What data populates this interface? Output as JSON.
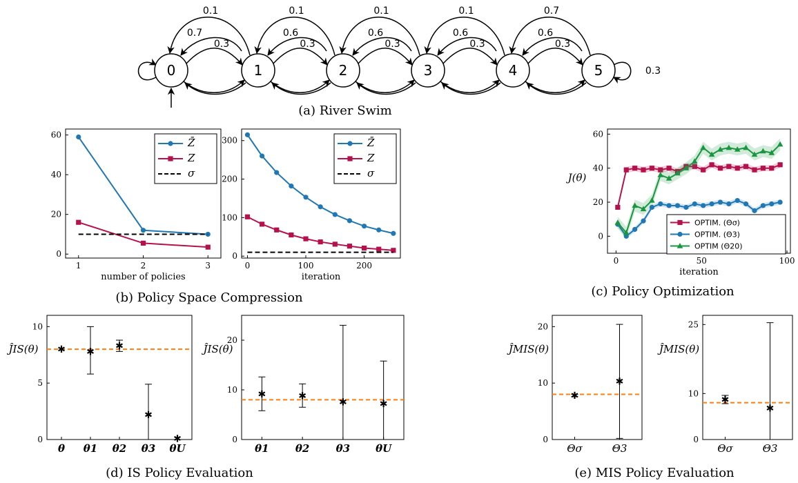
{
  "colors": {
    "blue": "#1f77b4",
    "red": "#b5124d",
    "green": "#1a9641",
    "orange": "#ff7f0e",
    "black": "#000000"
  },
  "river_swim": {
    "caption": "(a) River Swim",
    "states": [
      "0",
      "1",
      "2",
      "3",
      "4",
      "5"
    ],
    "probs": {
      "top": [
        "0.1",
        "0.1",
        "0.1",
        "0.1",
        "0.7"
      ],
      "stay_left": [
        "0.7",
        "0.6",
        "0.6",
        "0.6",
        "0.6"
      ],
      "forward": [
        "0.3",
        "0.3",
        "0.3",
        "0.3",
        "0.3"
      ],
      "self5": "0.3"
    }
  },
  "captions": {
    "b": "(b) Policy Space Compression",
    "c": "(c) Policy Optimization",
    "d": "(d) IS Policy Evaluation",
    "e": "(e) MIS Policy Evaluation"
  },
  "chart_data": [
    {
      "id": "b1",
      "type": "line",
      "xlabel": "number of policies",
      "ylabel": "",
      "xlim": [
        0.8,
        3.2
      ],
      "ylim": [
        -2,
        63
      ],
      "xticks": [
        1,
        2,
        3
      ],
      "yticks": [
        0,
        20,
        40,
        60
      ],
      "legend_position": "top-right",
      "series": [
        {
          "name": "Z̄",
          "color": "blue",
          "marker": "circle",
          "x": [
            1,
            2,
            3
          ],
          "y": [
            59,
            12,
            10
          ]
        },
        {
          "name": "Z",
          "color": "red",
          "marker": "square",
          "x": [
            1,
            2,
            3
          ],
          "y": [
            16,
            5.5,
            3.5
          ]
        },
        {
          "name": "σ",
          "color": "black",
          "dashed": true,
          "x": [
            1,
            3
          ],
          "y": [
            10,
            10
          ]
        }
      ]
    },
    {
      "id": "b2",
      "type": "line",
      "xlabel": "iteration",
      "ylabel": "",
      "xlim": [
        -10,
        262
      ],
      "ylim": [
        -5,
        330
      ],
      "xticks": [
        0,
        100,
        200
      ],
      "yticks": [
        0,
        100,
        200,
        300
      ],
      "legend_position": "top-right",
      "series": [
        {
          "name": "Z̄",
          "color": "blue",
          "marker": "circle",
          "x": [
            0,
            25,
            50,
            75,
            100,
            125,
            150,
            175,
            200,
            225,
            250
          ],
          "y": [
            315,
            260,
            217,
            182,
            153,
            128,
            108,
            92,
            78,
            68,
            59
          ]
        },
        {
          "name": "Z",
          "color": "red",
          "marker": "square",
          "x": [
            0,
            25,
            50,
            75,
            100,
            125,
            150,
            175,
            200,
            225,
            250
          ],
          "y": [
            102,
            83,
            68,
            55,
            45,
            37,
            31,
            26,
            21,
            18,
            15
          ]
        },
        {
          "name": "σ",
          "color": "black",
          "dashed": true,
          "x": [
            0,
            250
          ],
          "y": [
            10,
            10
          ]
        }
      ]
    },
    {
      "id": "c",
      "type": "line",
      "xlabel": "iteration",
      "ylabel": "J(θ)",
      "xlim": [
        -5,
        102
      ],
      "ylim": [
        -10,
        63
      ],
      "xticks": [
        0,
        50,
        100
      ],
      "yticks": [
        0,
        20,
        40,
        60
      ],
      "legend_position": "bottom-right",
      "series": [
        {
          "name": "OPTIM. (Θσ)",
          "color": "red",
          "marker": "square",
          "x": [
            1,
            6,
            11,
            16,
            21,
            26,
            31,
            36,
            41,
            46,
            51,
            56,
            61,
            66,
            71,
            76,
            81,
            86,
            91,
            96
          ],
          "y": [
            17,
            39,
            40,
            39,
            40,
            39,
            40,
            38,
            41,
            41,
            39,
            42,
            40,
            41,
            40,
            41,
            39,
            40,
            40,
            42
          ]
        },
        {
          "name": "OPTIM. (Θ3)",
          "color": "blue",
          "marker": "circle",
          "x": [
            1,
            6,
            11,
            16,
            21,
            26,
            31,
            36,
            41,
            46,
            51,
            56,
            61,
            66,
            71,
            76,
            81,
            86,
            91,
            96
          ],
          "y": [
            7,
            0,
            4,
            9,
            17,
            19,
            18,
            18,
            17,
            19,
            18,
            19,
            20,
            19,
            21,
            19,
            15,
            18,
            19,
            20
          ]
        },
        {
          "name": "OPTIM (Θ20)",
          "color": "green",
          "marker": "triangle",
          "x": [
            1,
            6,
            11,
            16,
            21,
            26,
            31,
            36,
            41,
            46,
            51,
            56,
            61,
            66,
            71,
            76,
            81,
            86,
            91,
            96
          ],
          "y": [
            8,
            2,
            18,
            16,
            21,
            36,
            34,
            37,
            40,
            44,
            52,
            48,
            51,
            52,
            51,
            52,
            48,
            50,
            49,
            54
          ]
        }
      ]
    },
    {
      "id": "d1",
      "type": "errorbar",
      "ylabel": "ĴIS(θ)",
      "categories": [
        "θ",
        "θ1",
        "θ2",
        "θ3",
        "θU"
      ],
      "ylim": [
        0,
        11
      ],
      "yticks": [
        0,
        5,
        10
      ],
      "reference": 8,
      "points": [
        {
          "y": 8.0,
          "lo": 8.0,
          "hi": 8.0
        },
        {
          "y": 7.8,
          "lo": 5.8,
          "hi": 10.0
        },
        {
          "y": 8.3,
          "lo": 7.8,
          "hi": 8.8
        },
        {
          "y": 2.2,
          "lo": 0.0,
          "hi": 4.9
        },
        {
          "y": 0.1,
          "lo": 0.1,
          "hi": 0.1
        }
      ]
    },
    {
      "id": "d2",
      "type": "errorbar",
      "ylabel": "ĴIS(θ)",
      "categories": [
        "θ1",
        "θ2",
        "θ3",
        "θU"
      ],
      "ylim": [
        0,
        25
      ],
      "yticks": [
        0,
        10,
        20
      ],
      "reference": 8,
      "points": [
        {
          "y": 9.2,
          "lo": 5.8,
          "hi": 12.6
        },
        {
          "y": 8.8,
          "lo": 6.5,
          "hi": 11.2
        },
        {
          "y": 7.6,
          "lo": 0.0,
          "hi": 23.0
        },
        {
          "y": 7.2,
          "lo": 0.0,
          "hi": 15.8
        }
      ]
    },
    {
      "id": "e1",
      "type": "errorbar",
      "ylabel": "ĴMIS(θ)",
      "categories": [
        "Θσ",
        "Θ3"
      ],
      "ylim": [
        0,
        22
      ],
      "yticks": [
        0,
        10,
        20
      ],
      "reference": 8,
      "points": [
        {
          "y": 7.8,
          "lo": 7.6,
          "hi": 8.0
        },
        {
          "y": 10.3,
          "lo": 0.2,
          "hi": 20.4
        }
      ]
    },
    {
      "id": "e2",
      "type": "errorbar",
      "ylabel": "ĴMIS(θ)",
      "categories": [
        "Θσ",
        "Θ3"
      ],
      "ylim": [
        0,
        27
      ],
      "yticks": [
        0,
        10,
        25
      ],
      "reference": 8,
      "points": [
        {
          "y": 8.7,
          "lo": 7.8,
          "hi": 9.6
        },
        {
          "y": 6.8,
          "lo": 0.0,
          "hi": 25.4
        }
      ]
    }
  ]
}
